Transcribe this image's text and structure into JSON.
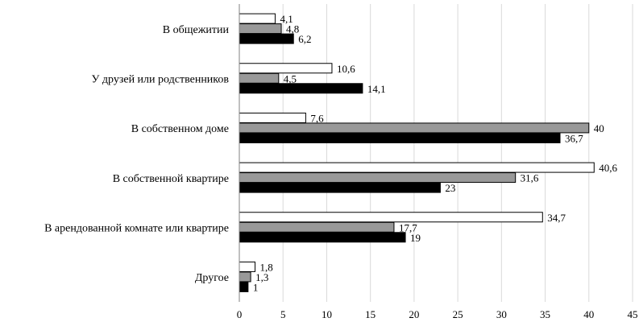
{
  "chart_data": {
    "type": "bar",
    "orientation": "horizontal",
    "categories": [
      "В общежитии",
      "У друзей или родственников",
      "В собственном доме",
      "В собственной квартире",
      "В арендованной комнате или квартире",
      "Другое"
    ],
    "series": [
      {
        "color": "#ffffff",
        "values": [
          4.1,
          10.6,
          7.6,
          40.6,
          34.7,
          1.8
        ]
      },
      {
        "color": "#999999",
        "values": [
          4.8,
          4.5,
          40,
          31.6,
          17.7,
          1.3
        ]
      },
      {
        "color": "#000000",
        "values": [
          6.2,
          14.1,
          36.7,
          23,
          19,
          1
        ]
      }
    ],
    "value_labels": [
      [
        "4,1",
        "10,6",
        "7,6",
        "40,6",
        "34,7",
        "1,8"
      ],
      [
        "4,8",
        "4,5",
        "40",
        "31,6",
        "17,7",
        "1,3"
      ],
      [
        "6,2",
        "14,1",
        "36,7",
        "23",
        "19",
        "1"
      ]
    ],
    "xlim": [
      0,
      45
    ],
    "xticks": [
      0,
      5,
      10,
      15,
      20,
      25,
      30,
      35,
      40,
      45
    ],
    "grid": "vertical",
    "legend": "none"
  }
}
